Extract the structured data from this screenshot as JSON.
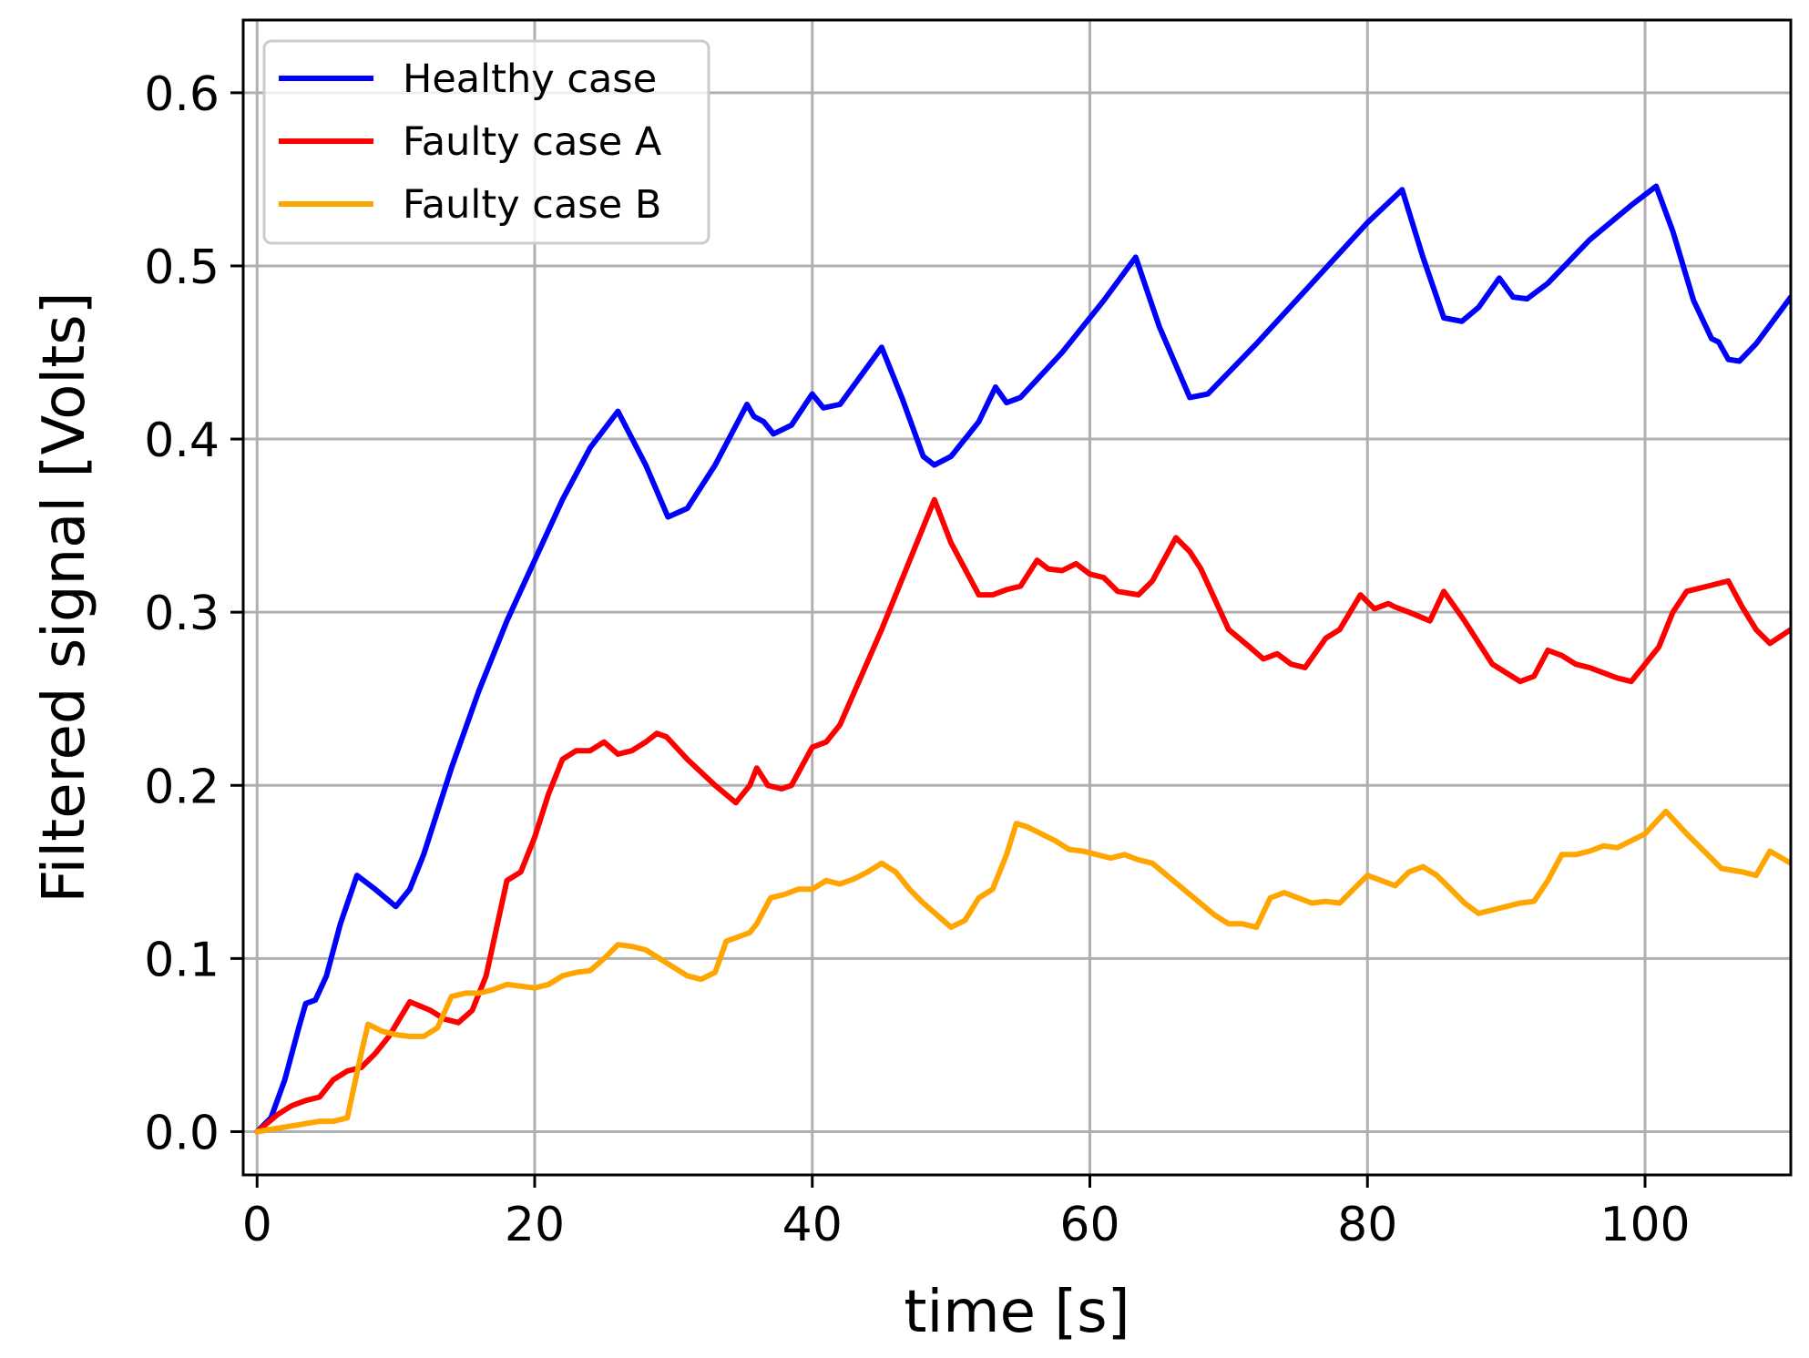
{
  "chart_data": {
    "type": "line",
    "title": "",
    "xlabel": "time [s]",
    "ylabel": "Filtered signal [Volts]",
    "xlim": [
      -1,
      110.5
    ],
    "ylim": [
      -0.025,
      0.642
    ],
    "xticks": [
      0,
      20,
      40,
      60,
      80,
      100
    ],
    "xtick_labels": [
      "0",
      "20",
      "40",
      "60",
      "80",
      "100"
    ],
    "yticks": [
      0.0,
      0.1,
      0.2,
      0.3,
      0.4,
      0.5,
      0.6
    ],
    "ytick_labels": [
      "0.0",
      "0.1",
      "0.2",
      "0.3",
      "0.4",
      "0.5",
      "0.6"
    ],
    "grid": true,
    "legend_position": "top-left",
    "series": [
      {
        "name": "Healthy case",
        "color": "#0000ff",
        "x": [
          0,
          1,
          2,
          3,
          3.5,
          4.2,
          5,
          6,
          7.2,
          8.5,
          10,
          11,
          12,
          14,
          16,
          18,
          20,
          22,
          24,
          26,
          28,
          29.6,
          31,
          33,
          35.3,
          35.8,
          36.5,
          37.2,
          38.5,
          40,
          40.8,
          42,
          45,
          46.5,
          48,
          48.8,
          50,
          52,
          53.2,
          54,
          55,
          58,
          61,
          63.3,
          65,
          67.2,
          68.5,
          72,
          76,
          80,
          82.5,
          84,
          85.5,
          86.8,
          88,
          89.5,
          90.5,
          91.5,
          93,
          96,
          99,
          100.8,
          102,
          103.5,
          104.8,
          105.3,
          106,
          106.8,
          108,
          110.5
        ],
        "values": [
          0,
          0.008,
          0.03,
          0.06,
          0.074,
          0.076,
          0.09,
          0.12,
          0.148,
          0.14,
          0.13,
          0.14,
          0.16,
          0.21,
          0.255,
          0.295,
          0.33,
          0.365,
          0.395,
          0.416,
          0.385,
          0.355,
          0.36,
          0.385,
          0.42,
          0.413,
          0.41,
          0.403,
          0.408,
          0.426,
          0.418,
          0.42,
          0.453,
          0.423,
          0.39,
          0.385,
          0.39,
          0.41,
          0.43,
          0.421,
          0.424,
          0.45,
          0.48,
          0.505,
          0.465,
          0.424,
          0.426,
          0.455,
          0.49,
          0.525,
          0.544,
          0.505,
          0.47,
          0.468,
          0.476,
          0.493,
          0.482,
          0.481,
          0.49,
          0.515,
          0.535,
          0.546,
          0.52,
          0.48,
          0.458,
          0.456,
          0.446,
          0.445,
          0.455,
          0.482
        ]
      },
      {
        "name": "Faulty case A",
        "color": "#ff0000",
        "x": [
          0,
          1.5,
          2.5,
          3.5,
          4.5,
          5.5,
          6.5,
          7.5,
          8.5,
          9.5,
          11,
          12.5,
          13.5,
          14.5,
          15.5,
          16.5,
          18,
          19,
          20,
          21,
          22,
          23,
          24,
          25,
          26,
          27,
          28,
          28.8,
          29.5,
          31,
          33,
          34.5,
          35.5,
          36,
          36.8,
          37.8,
          38.5,
          40,
          41,
          42,
          45,
          48.8,
          50,
          52,
          53,
          54,
          55,
          56.2,
          57,
          58,
          59,
          60,
          61,
          62,
          63.5,
          64.5,
          66.2,
          67.2,
          68,
          70,
          71.5,
          72.5,
          73.5,
          74.5,
          75.5,
          77,
          78,
          79.5,
          80.5,
          81.5,
          82,
          83,
          84.5,
          85.5,
          87,
          89,
          90,
          91,
          92,
          93,
          94,
          95,
          96,
          97,
          98,
          99,
          101,
          102,
          103,
          104.5,
          106,
          107,
          108,
          109,
          110.5
        ],
        "values": [
          0,
          0.01,
          0.015,
          0.018,
          0.02,
          0.03,
          0.035,
          0.037,
          0.045,
          0.055,
          0.075,
          0.07,
          0.065,
          0.063,
          0.07,
          0.09,
          0.145,
          0.15,
          0.17,
          0.195,
          0.215,
          0.22,
          0.22,
          0.225,
          0.218,
          0.22,
          0.225,
          0.23,
          0.228,
          0.215,
          0.2,
          0.19,
          0.2,
          0.21,
          0.2,
          0.198,
          0.2,
          0.222,
          0.225,
          0.235,
          0.29,
          0.365,
          0.34,
          0.31,
          0.31,
          0.313,
          0.315,
          0.33,
          0.325,
          0.324,
          0.328,
          0.322,
          0.32,
          0.312,
          0.31,
          0.318,
          0.343,
          0.335,
          0.325,
          0.29,
          0.28,
          0.273,
          0.276,
          0.27,
          0.268,
          0.285,
          0.29,
          0.31,
          0.302,
          0.305,
          0.303,
          0.3,
          0.295,
          0.312,
          0.295,
          0.27,
          0.265,
          0.26,
          0.263,
          0.278,
          0.275,
          0.27,
          0.268,
          0.265,
          0.262,
          0.26,
          0.28,
          0.3,
          0.312,
          0.315,
          0.318,
          0.303,
          0.29,
          0.282,
          0.29
        ]
      },
      {
        "name": "Faulty case B",
        "color": "#ffa500",
        "x": [
          0,
          1.5,
          3,
          4.5,
          5.5,
          6.5,
          7.5,
          8,
          9,
          10,
          11,
          12,
          13,
          14,
          15,
          16,
          17,
          18,
          19,
          20,
          21,
          22,
          23,
          24,
          25,
          26,
          27,
          28,
          29,
          30,
          31,
          32,
          33,
          33.8,
          34.5,
          35.5,
          36,
          37,
          38,
          39,
          40,
          41,
          42,
          43,
          44,
          45,
          46,
          47,
          48,
          49,
          50,
          51,
          52,
          53,
          54,
          54.7,
          55.5,
          56.5,
          57.5,
          58.5,
          59.5,
          60.5,
          61.5,
          62.5,
          63.5,
          64.5,
          66,
          67.5,
          69,
          70,
          71,
          72,
          73,
          74,
          75,
          76,
          77,
          78,
          79,
          80,
          81,
          82,
          83,
          84,
          85,
          86,
          87,
          88,
          89,
          90,
          91,
          92,
          93,
          94,
          95,
          96,
          97,
          98,
          99,
          100,
          101.5,
          103,
          104.5,
          105.5,
          107,
          108,
          109,
          110.5
        ],
        "values": [
          0,
          0.002,
          0.004,
          0.006,
          0.006,
          0.008,
          0.045,
          0.062,
          0.058,
          0.056,
          0.055,
          0.055,
          0.06,
          0.078,
          0.08,
          0.08,
          0.082,
          0.085,
          0.084,
          0.083,
          0.085,
          0.09,
          0.092,
          0.093,
          0.1,
          0.108,
          0.107,
          0.105,
          0.1,
          0.095,
          0.09,
          0.088,
          0.092,
          0.11,
          0.112,
          0.115,
          0.12,
          0.135,
          0.137,
          0.14,
          0.14,
          0.145,
          0.143,
          0.146,
          0.15,
          0.155,
          0.15,
          0.14,
          0.132,
          0.125,
          0.118,
          0.122,
          0.135,
          0.14,
          0.16,
          0.178,
          0.176,
          0.172,
          0.168,
          0.163,
          0.162,
          0.16,
          0.158,
          0.16,
          0.157,
          0.155,
          0.145,
          0.135,
          0.125,
          0.12,
          0.12,
          0.118,
          0.135,
          0.138,
          0.135,
          0.132,
          0.133,
          0.132,
          0.14,
          0.148,
          0.145,
          0.142,
          0.15,
          0.153,
          0.148,
          0.14,
          0.132,
          0.126,
          0.128,
          0.13,
          0.132,
          0.133,
          0.145,
          0.16,
          0.16,
          0.162,
          0.165,
          0.164,
          0.168,
          0.172,
          0.185,
          0.172,
          0.16,
          0.152,
          0.15,
          0.148,
          0.162,
          0.155
        ]
      }
    ]
  }
}
